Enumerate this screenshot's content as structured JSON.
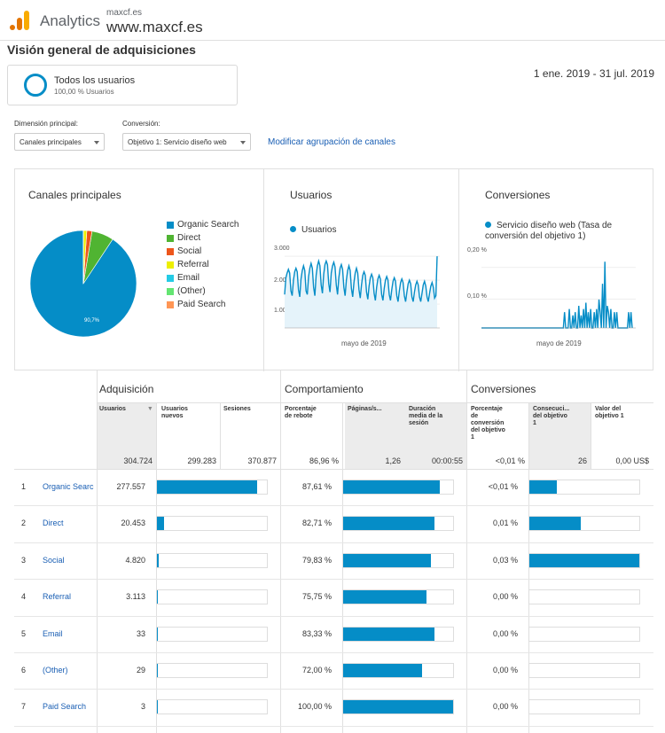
{
  "header": {
    "app_name": "Analytics",
    "account_small": "maxcf.es",
    "account_big": "www.maxcf.es",
    "logo_colors": [
      "#f9ab00",
      "#e37400"
    ]
  },
  "page_title": "Visión general de adquisiciones",
  "segment": {
    "name": "Todos los usuarios",
    "pct": "100,00 % Usuarios",
    "ring_color": "#058dc7"
  },
  "date_range": "1 ene. 2019 - 31 jul. 2019",
  "controls": {
    "primary_dimension_label": "Dimensión principal:",
    "primary_dimension_value": "Canales principales",
    "conversion_label": "Conversión:",
    "conversion_value": "Objetivo 1: Servicio diseño web",
    "modify_link": "Modificar agrupación de canales"
  },
  "panels": {
    "channels": {
      "title": "Canales principales",
      "legend": [
        {
          "label": "Organic Search",
          "color": "#058dc7"
        },
        {
          "label": "Direct",
          "color": "#50b432"
        },
        {
          "label": "Social",
          "color": "#ed561b"
        },
        {
          "label": "Referral",
          "color": "#edef00"
        },
        {
          "label": "Email",
          "color": "#24cbe5"
        },
        {
          "label": "(Other)",
          "color": "#64e572"
        },
        {
          "label": "Paid Search",
          "color": "#ff9655"
        }
      ],
      "pie_label": "90,7%"
    },
    "users": {
      "title": "Usuarios",
      "legend": "Usuarios",
      "y_ticks": [
        "3.000",
        "2.000",
        "1.000"
      ],
      "x_label": "mayo de 2019"
    },
    "conversions": {
      "title": "Conversiones",
      "legend_line1": "Servicio diseño web (Tasa de",
      "legend_line2": "conversión del objetivo 1)",
      "y_ticks": [
        "0,20 %",
        "0,10 %"
      ],
      "x_label": "mayo de 2019"
    }
  },
  "chart_data": [
    {
      "type": "pie",
      "title": "Canales principales",
      "categories": [
        "Organic Search",
        "Direct",
        "Social",
        "Referral",
        "Email",
        "(Other)",
        "Paid Search"
      ],
      "values": [
        277557,
        20453,
        4820,
        3113,
        33,
        29,
        3
      ],
      "colors": [
        "#058dc7",
        "#50b432",
        "#ed561b",
        "#edef00",
        "#24cbe5",
        "#64e572",
        "#ff9655"
      ]
    },
    {
      "type": "area",
      "title": "Usuarios",
      "ylim": [
        0,
        3300
      ],
      "series": [
        {
          "name": "Usuarios",
          "values": [
            1400,
            2100,
            2300,
            2450,
            2300,
            1550,
            1350,
            2000,
            2350,
            2500,
            2350,
            1600,
            1300,
            2050,
            2400,
            2600,
            2400,
            1550,
            1400,
            2150,
            2500,
            2700,
            2500,
            1700,
            1350,
            2200,
            2600,
            2800,
            2600,
            1800,
            1450,
            2250,
            2650,
            2800,
            2650,
            1850,
            1500,
            2300,
            2600,
            2750,
            2550,
            1800,
            1400,
            2100,
            2500,
            2650,
            2450,
            1700,
            1350,
            2000,
            2400,
            2600,
            2400,
            1650,
            1300,
            1900,
            2300,
            2500,
            2300,
            1600,
            1250,
            1800,
            2200,
            2350,
            2200,
            1500,
            1200,
            1750,
            2100,
            2250,
            2100,
            1450,
            1150,
            1700,
            2050,
            2200,
            2050,
            1400,
            1150,
            1650,
            2000,
            2150,
            2000,
            1400,
            1150,
            1600,
            1950,
            2100,
            1950,
            1350,
            1100,
            1550,
            1900,
            2050,
            1900,
            1350,
            1100,
            1500,
            1850,
            2000,
            1850,
            1300,
            1100,
            1500,
            1800,
            1950,
            1800,
            1300,
            1100,
            1450,
            1800,
            1950,
            1750,
            1300,
            1100,
            1450,
            1750,
            1900,
            1700,
            1250,
            1350,
            3000
          ]
        }
      ]
    },
    {
      "type": "line",
      "title": "Conversiones",
      "ylim": [
        0,
        0.25
      ],
      "series": [
        {
          "name": "Servicio diseño web (Tasa de conversión del objetivo 1)",
          "values": [
            0,
            0,
            0,
            0,
            0,
            0,
            0,
            0,
            0,
            0,
            0,
            0,
            0,
            0,
            0,
            0,
            0,
            0,
            0,
            0,
            0,
            0,
            0,
            0,
            0,
            0,
            0,
            0,
            0,
            0,
            0,
            0,
            0,
            0,
            0,
            0,
            0,
            0,
            0,
            0,
            0,
            0,
            0,
            0,
            0,
            0,
            0,
            0,
            0,
            0,
            0,
            0,
            0,
            0,
            0,
            0,
            0,
            0,
            0,
            0,
            0,
            0,
            0,
            0,
            0,
            0,
            0,
            0,
            0,
            0,
            0.05,
            0,
            0,
            0,
            0.06,
            0,
            0,
            0.04,
            0,
            0.05,
            0,
            0,
            0.07,
            0,
            0.04,
            0,
            0.06,
            0,
            0.08,
            0,
            0.05,
            0,
            0.06,
            0,
            0,
            0.05,
            0,
            0.06,
            0,
            0.09,
            0.05,
            0,
            0.14,
            0,
            0.21,
            0,
            0.07,
            0.05,
            0,
            0.06,
            0,
            0,
            0.05,
            0,
            0.05,
            0,
            0,
            0,
            0,
            0,
            0,
            0,
            0,
            0,
            0.05,
            0,
            0.05,
            0
          ]
        }
      ]
    }
  ],
  "table": {
    "groups": {
      "acquisition": "Adquisición",
      "behavior": "Comportamiento",
      "conversions": "Conversiones"
    },
    "headers": {
      "users": "Usuarios",
      "new_users_1": "Usuarios",
      "new_users_2": "nuevos",
      "sessions": "Sesiones",
      "bounce_1": "Porcentaje",
      "bounce_2": "de rebote",
      "pages": "Páginas/s...",
      "duration_1": "Duración",
      "duration_2": "media de la",
      "duration_3": "sesión",
      "conv_rate_1": "Porcentaje",
      "conv_rate_2": "de",
      "conv_rate_3": "conversión",
      "conv_rate_4": "del objetivo",
      "conv_rate_5": "1",
      "achieved_1": "Consecuci...",
      "achieved_2": "del objetivo",
      "achieved_3": "1",
      "value_1": "Valor del",
      "value_2": "objetivo 1"
    },
    "totals": {
      "users": "304.724",
      "new_users": "299.283",
      "sessions": "370.877",
      "bounce": "86,96 %",
      "pages": "1,26",
      "duration": "00:00:55",
      "conv_rate": "<0,01 %",
      "achieved": "26",
      "value": "0,00 US$"
    },
    "rows": [
      {
        "num": "1",
        "channel": "Organic Searc",
        "users": "277.557",
        "users_frac": 0.91,
        "bounce": "87,61 %",
        "bounce_frac": 0.876,
        "conv": "<0,01 %",
        "conv_frac": 0.25
      },
      {
        "num": "2",
        "channel": "Direct",
        "users": "20.453",
        "users_frac": 0.066,
        "bounce": "82,71 %",
        "bounce_frac": 0.827,
        "conv": "0,01 %",
        "conv_frac": 0.47
      },
      {
        "num": "3",
        "channel": "Social",
        "users": "4.820",
        "users_frac": 0.016,
        "bounce": "79,83 %",
        "bounce_frac": 0.798,
        "conv": "0,03 %",
        "conv_frac": 1.0
      },
      {
        "num": "4",
        "channel": "Referral",
        "users": "3.113",
        "users_frac": 0.01,
        "bounce": "75,75 %",
        "bounce_frac": 0.757,
        "conv": "0,00 %",
        "conv_frac": 0
      },
      {
        "num": "5",
        "channel": "Email",
        "users": "33",
        "users_frac": 0.004,
        "bounce": "83,33 %",
        "bounce_frac": 0.833,
        "conv": "0,00 %",
        "conv_frac": 0
      },
      {
        "num": "6",
        "channel": "(Other)",
        "users": "29",
        "users_frac": 0.004,
        "bounce": "72,00 %",
        "bounce_frac": 0.72,
        "conv": "0,00 %",
        "conv_frac": 0
      },
      {
        "num": "7",
        "channel": "Paid Search",
        "users": "3",
        "users_frac": 0.002,
        "bounce": "100,00 %",
        "bounce_frac": 1.0,
        "conv": "0,00 %",
        "conv_frac": 0
      }
    ]
  }
}
